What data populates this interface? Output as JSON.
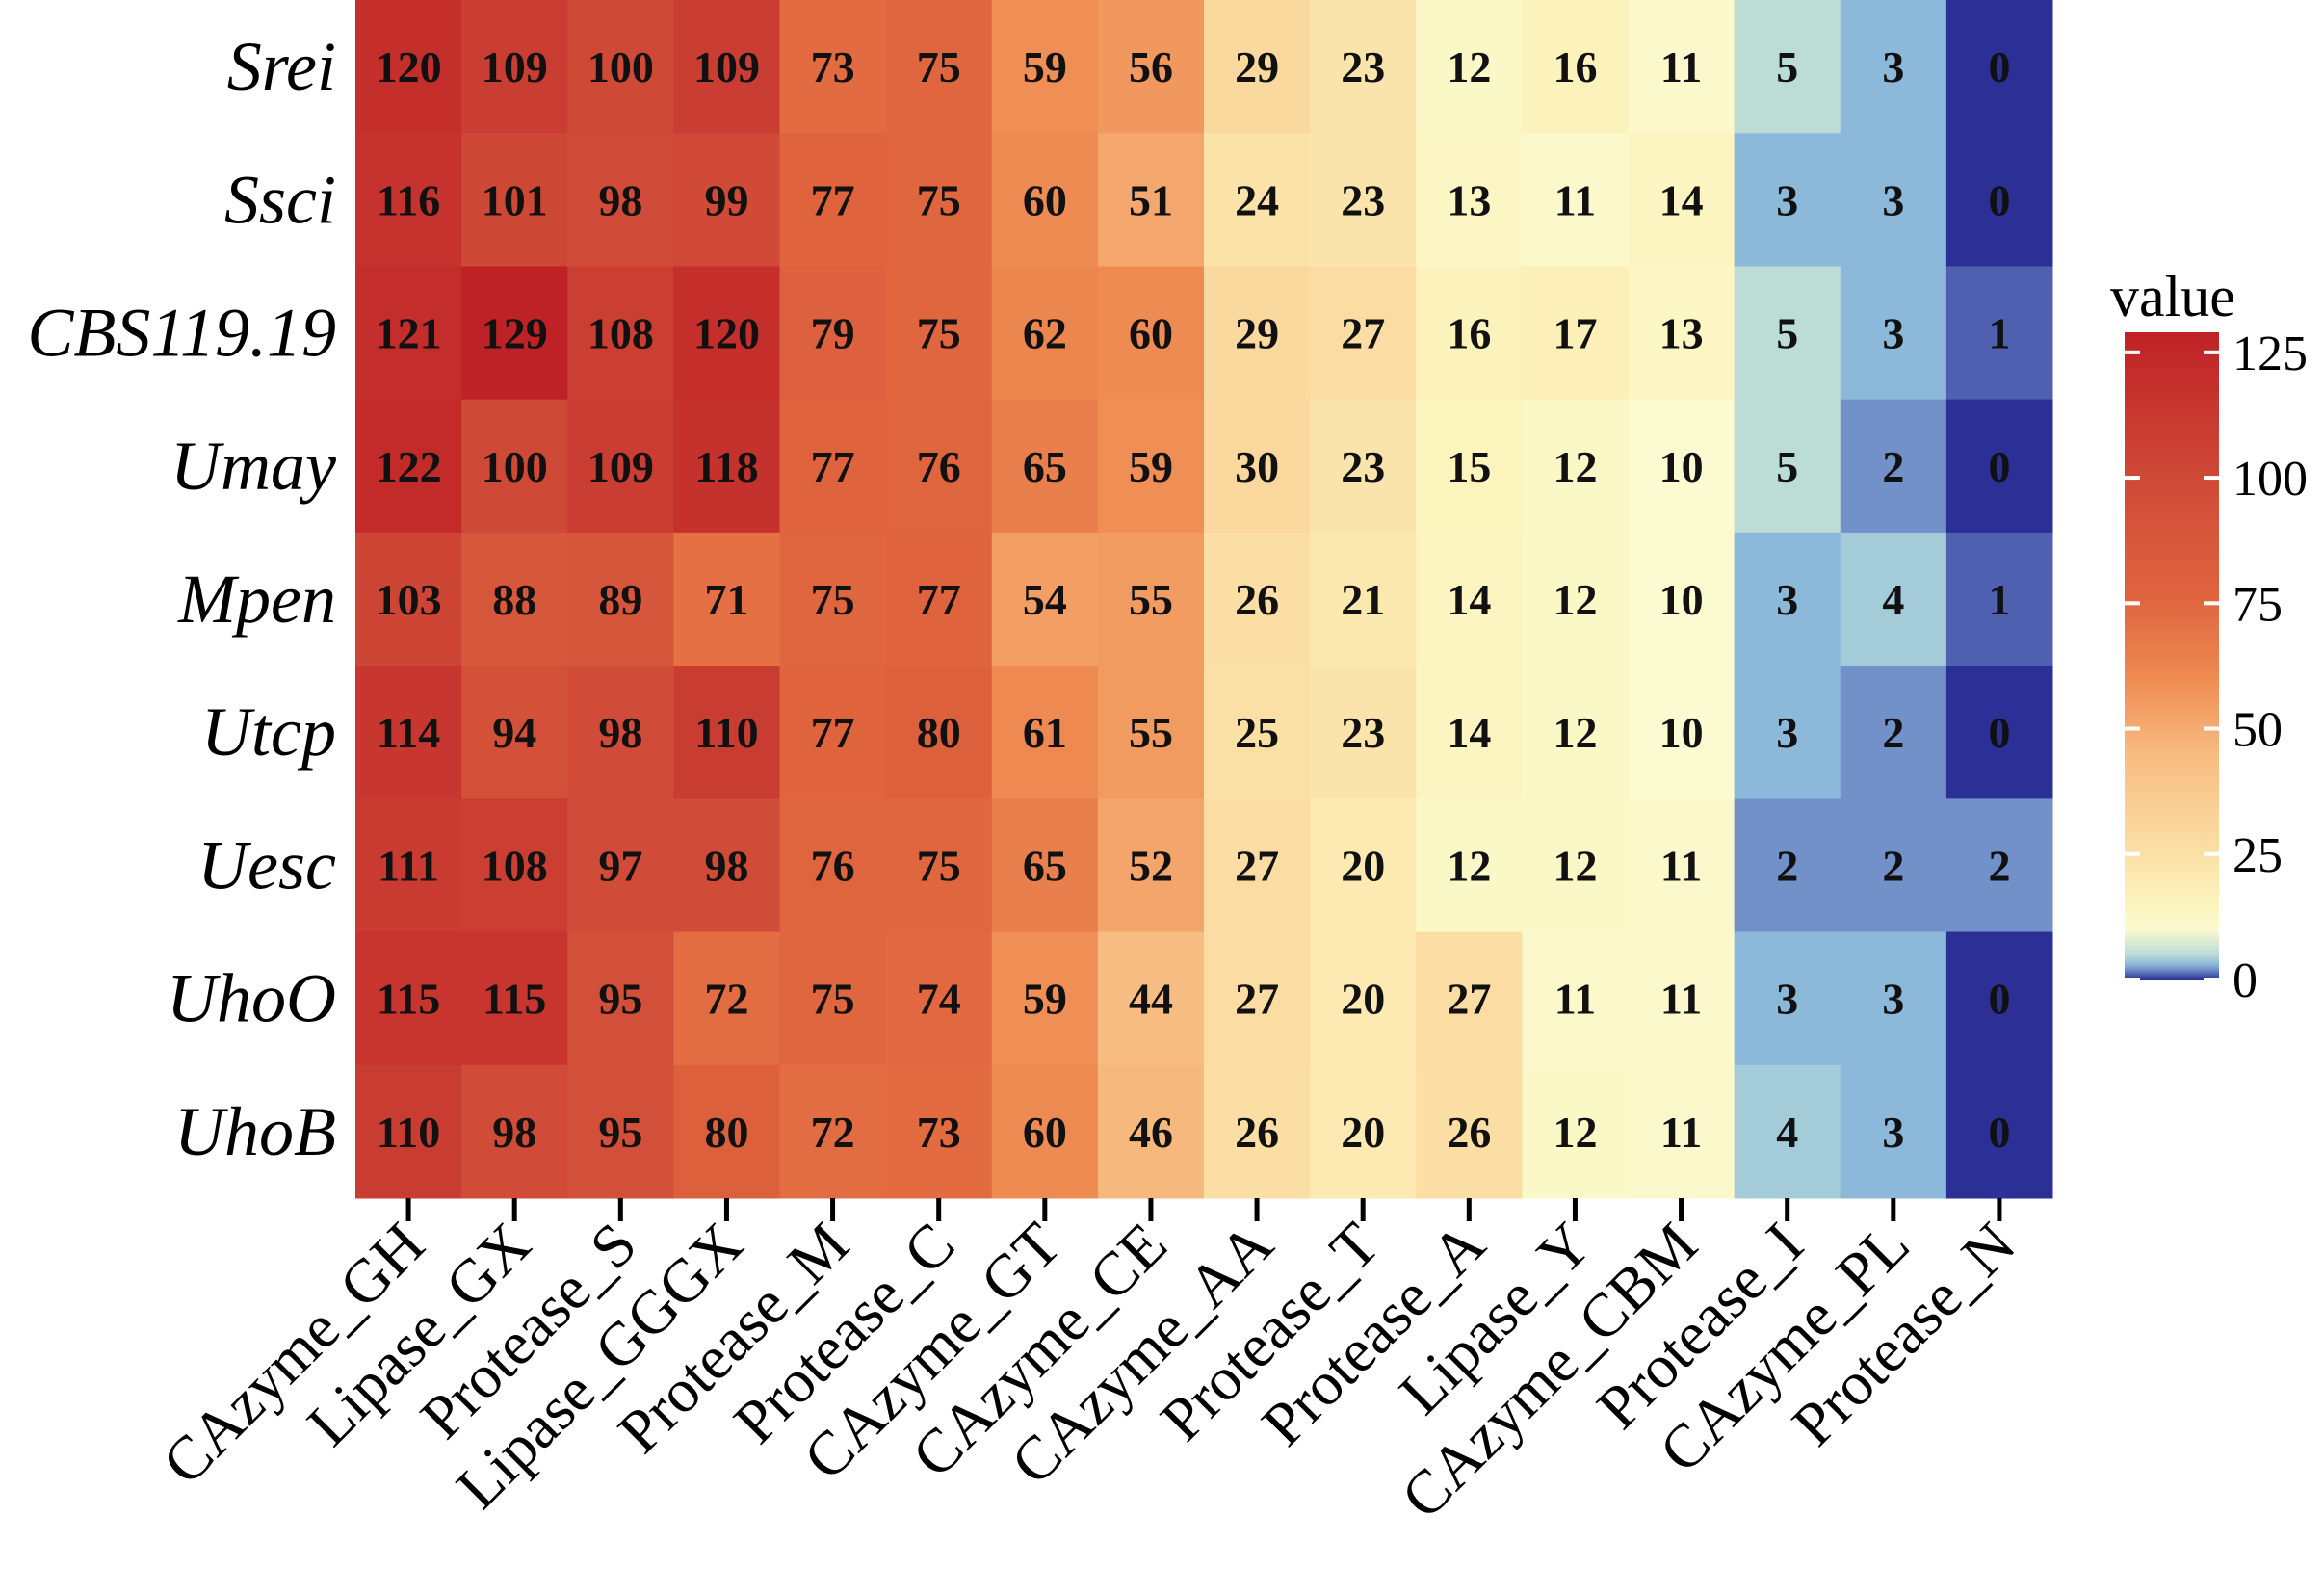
{
  "chart_data": {
    "type": "heatmap",
    "rows": [
      "Srei",
      "Ssci",
      "CBS119.19",
      "Umay",
      "Mpen",
      "Utcp",
      "Uesc",
      "UhoO",
      "UhoB"
    ],
    "columns": [
      "CAzyme_GH",
      "Lipase_GX",
      "Protease_S",
      "Lipase_GGGX",
      "Protease_M",
      "Protease_C",
      "CAzyme_GT",
      "CAzyme_CE",
      "CAzyme_AA",
      "Protease_T",
      "Protease_A",
      "Lipase_Y",
      "CAzyme_CBM",
      "Protease_I",
      "CAzyme_PL",
      "Protease_N"
    ],
    "values": [
      [
        120,
        109,
        100,
        109,
        73,
        75,
        59,
        56,
        29,
        23,
        12,
        16,
        11,
        5,
        3,
        0
      ],
      [
        116,
        101,
        98,
        99,
        77,
        75,
        60,
        51,
        24,
        23,
        13,
        11,
        14,
        3,
        3,
        0
      ],
      [
        121,
        129,
        108,
        120,
        79,
        75,
        62,
        60,
        29,
        27,
        16,
        17,
        13,
        5,
        3,
        1
      ],
      [
        122,
        100,
        109,
        118,
        77,
        76,
        65,
        59,
        30,
        23,
        15,
        12,
        10,
        5,
        2,
        0
      ],
      [
        103,
        88,
        89,
        71,
        75,
        77,
        54,
        55,
        26,
        21,
        14,
        12,
        10,
        3,
        4,
        1
      ],
      [
        114,
        94,
        98,
        110,
        77,
        80,
        61,
        55,
        25,
        23,
        14,
        12,
        10,
        3,
        2,
        0
      ],
      [
        111,
        108,
        97,
        98,
        76,
        75,
        65,
        52,
        27,
        20,
        12,
        12,
        11,
        2,
        2,
        2
      ],
      [
        115,
        115,
        95,
        72,
        75,
        74,
        59,
        44,
        27,
        20,
        27,
        11,
        11,
        3,
        3,
        0
      ],
      [
        110,
        98,
        95,
        80,
        72,
        73,
        60,
        46,
        26,
        20,
        26,
        12,
        11,
        4,
        3,
        0
      ]
    ],
    "legend": {
      "title": "value",
      "ticks": [
        125,
        100,
        75,
        50,
        25,
        0
      ],
      "range": [
        0,
        129
      ],
      "placement": "right"
    },
    "colors": {
      "low": "#2b2f96",
      "low_mid": "#8cb9da",
      "mid": "#fbfad0",
      "mid_high": "#f6a468",
      "high": "#c0282a"
    },
    "color_stops": [
      {
        "value": 0,
        "color": "#2b2f96"
      },
      {
        "value": 2,
        "color": "#7191c8"
      },
      {
        "value": 3,
        "color": "#8cb9da"
      },
      {
        "value": 5,
        "color": "#bcdcd6"
      },
      {
        "value": 10,
        "color": "#fbfad0"
      },
      {
        "value": 15,
        "color": "#fcf4bd"
      },
      {
        "value": 25,
        "color": "#fbe0a6"
      },
      {
        "value": 45,
        "color": "#f8bb80"
      },
      {
        "value": 60,
        "color": "#ee8b52"
      },
      {
        "value": 75,
        "color": "#e0663f"
      },
      {
        "value": 100,
        "color": "#cf4937"
      },
      {
        "value": 129,
        "color": "#bf2226"
      }
    ]
  }
}
